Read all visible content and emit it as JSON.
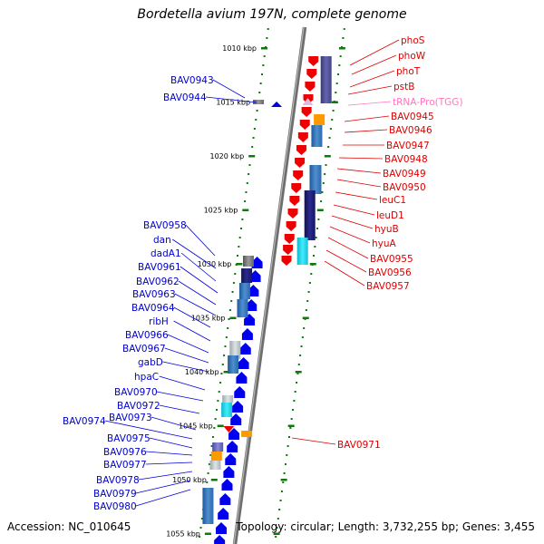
{
  "title": "Bordetella avium 197N, complete genome",
  "accession": "Accession: NC_010645",
  "topology": "Topology: circular; Length: 3,732,255 bp; Genes: 3,455",
  "colors": {
    "left_label": "#0000cc",
    "right_label": "#dd0000",
    "trna_label": "#ff77bb",
    "tick": "#117711",
    "backbone": "#808080"
  },
  "kbp_ticks": [
    "1010 kbp",
    "1015 kbp",
    "1020 kbp",
    "1025 kbp",
    "1030 kbp",
    "1035 kbp",
    "1040 kbp",
    "1045 kbp",
    "1050 kbp",
    "1055 kbp"
  ],
  "left_genes": [
    "BAV0943",
    "BAV0944",
    "BAV0958",
    "dan",
    "dadA1",
    "BAV0961",
    "BAV0962",
    "BAV0963",
    "BAV0964",
    "ribH",
    "BAV0966",
    "BAV0967",
    "gabD",
    "hpaC",
    "BAV0970",
    "BAV0972",
    "BAV0973",
    "BAV0974",
    "BAV0975",
    "BAV0976",
    "BAV0977",
    "BAV0978",
    "BAV0979",
    "BAV0980"
  ],
  "right_genes": [
    "phoS",
    "phoW",
    "phoT",
    "pstB",
    "tRNA-Pro(TGG)",
    "BAV0945",
    "BAV0946",
    "BAV0947",
    "BAV0948",
    "BAV0949",
    "BAV0950",
    "leuC1",
    "leuD1",
    "hyuB",
    "hyuA",
    "BAV0955",
    "BAV0956",
    "BAV0957",
    "BAV0971"
  ]
}
